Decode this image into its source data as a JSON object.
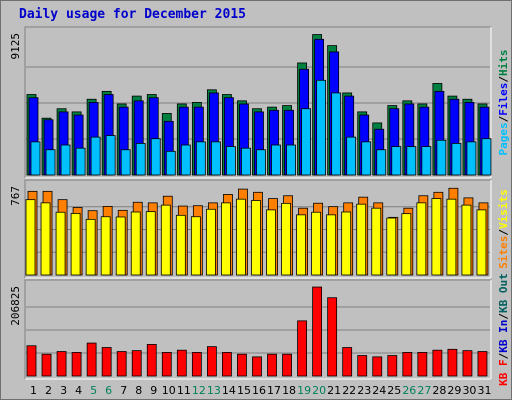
{
  "title": "Daily usage for December 2015",
  "colors": {
    "hits": "#008040",
    "files": "#0000ff",
    "pages": "#00c0ff",
    "visits": "#ffff00",
    "sites": "#ff8000",
    "kbin": "#0000cc",
    "kbout": "#006060",
    "kbf": "#ff0000",
    "weekend": "#00805c",
    "weekday": "#000000"
  },
  "chart_data": [
    {
      "type": "bar",
      "panel": "hits-files-pages",
      "ymax_label": "9125",
      "ymax": 9125,
      "legend": [
        "Pages",
        "/",
        "Files",
        "/",
        "Hits"
      ],
      "categories": [
        "1",
        "2",
        "3",
        "4",
        "5",
        "6",
        "7",
        "8",
        "9",
        "10",
        "11",
        "12",
        "13",
        "14",
        "15",
        "16",
        "17",
        "18",
        "19",
        "20",
        "21",
        "22",
        "23",
        "24",
        "25",
        "26",
        "27",
        "28",
        "29",
        "30",
        "31"
      ],
      "series": [
        {
          "name": "Hits",
          "values": [
            5100,
            3600,
            4200,
            4000,
            4800,
            5300,
            4500,
            5000,
            5100,
            3900,
            4500,
            4600,
            5400,
            5100,
            4700,
            4200,
            4300,
            4400,
            7100,
            8900,
            8200,
            5200,
            4000,
            3300,
            4400,
            4700,
            4500,
            5800,
            5000,
            4800,
            4500
          ]
        },
        {
          "name": "Files",
          "values": [
            4900,
            3500,
            4000,
            3800,
            4600,
            5100,
            4300,
            4700,
            4900,
            3400,
            4300,
            4300,
            5200,
            4900,
            4500,
            4000,
            4100,
            4100,
            6700,
            8600,
            7800,
            5000,
            3800,
            2900,
            4200,
            4500,
            4300,
            5300,
            4800,
            4600,
            4300
          ]
        },
        {
          "name": "Pages",
          "values": [
            2100,
            1600,
            1900,
            1700,
            2400,
            2500,
            1600,
            2000,
            2300,
            1500,
            1900,
            2100,
            2100,
            1800,
            1700,
            1600,
            1900,
            1900,
            4200,
            6000,
            5200,
            2400,
            2100,
            1600,
            1800,
            1800,
            1800,
            2200,
            2000,
            2100,
            2300
          ]
        }
      ]
    },
    {
      "type": "bar",
      "panel": "visits-sites",
      "ymax_label": "767",
      "ymax": 767,
      "legend": [
        "Sites",
        "/",
        "Visits"
      ],
      "categories": [
        "1",
        "2",
        "3",
        "4",
        "5",
        "6",
        "7",
        "8",
        "9",
        "10",
        "11",
        "12",
        "13",
        "14",
        "15",
        "16",
        "17",
        "18",
        "19",
        "20",
        "21",
        "22",
        "23",
        "24",
        "25",
        "26",
        "27",
        "28",
        "29",
        "30",
        "31"
      ],
      "series": [
        {
          "name": "Sites",
          "values": [
            705,
            705,
            635,
            569,
            542,
            578,
            545,
            613,
            608,
            664,
            581,
            584,
            608,
            679,
            724,
            697,
            644,
            668,
            563,
            605,
            576,
            608,
            656,
            608,
            486,
            563,
            668,
            697,
            731,
            650,
            608
          ]
        },
        {
          "name": "Visits",
          "values": [
            635,
            608,
            529,
            519,
            469,
            491,
            489,
            531,
            534,
            589,
            503,
            491,
            554,
            608,
            639,
            628,
            549,
            604,
            507,
            529,
            507,
            531,
            597,
            563,
            480,
            517,
            608,
            644,
            639,
            589,
            549
          ]
        }
      ]
    },
    {
      "type": "bar",
      "panel": "kbytes",
      "ymax_label": "206825",
      "ymax": 206825,
      "legend": [
        "KB F",
        "/",
        "KB In",
        "/",
        "KB Out"
      ],
      "categories": [
        "1",
        "2",
        "3",
        "4",
        "5",
        "6",
        "7",
        "8",
        "9",
        "10",
        "11",
        "12",
        "13",
        "14",
        "15",
        "16",
        "17",
        "18",
        "19",
        "20",
        "21",
        "22",
        "23",
        "24",
        "25",
        "26",
        "27",
        "28",
        "29",
        "30",
        "31"
      ],
      "series": [
        {
          "name": "KB F",
          "values": [
            68000,
            49000,
            55000,
            53000,
            74000,
            64000,
            55000,
            57000,
            71000,
            53000,
            58000,
            53000,
            66000,
            53000,
            49000,
            43000,
            49000,
            49000,
            124000,
            200000,
            176000,
            64000,
            46000,
            43000,
            46000,
            53000,
            53000,
            58000,
            60000,
            57000,
            55000
          ]
        }
      ]
    }
  ],
  "weekend_days": [
    5,
    6,
    12,
    13,
    19,
    20,
    26,
    27
  ]
}
